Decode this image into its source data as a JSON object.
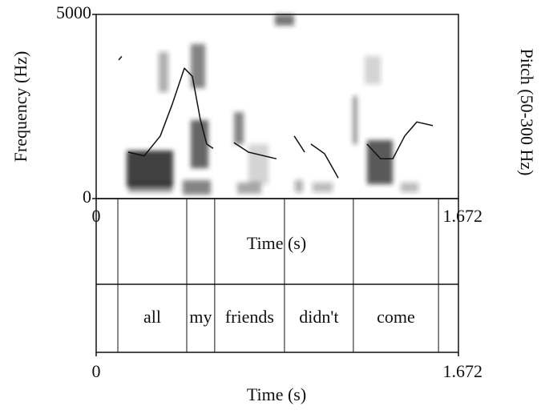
{
  "chart_data": {
    "type": "spectrogram",
    "ylabel": "Frequency (Hz)",
    "y2label": "Pitch (50-300 Hz)",
    "xlabel": "Time (s)",
    "xlim": [
      0,
      1.672
    ],
    "xticks": [
      0,
      1.672
    ],
    "ylim": [
      0,
      5000
    ],
    "yticks": [
      0,
      5000
    ],
    "y2lim": [
      50,
      300
    ],
    "series": [
      {
        "name": null,
        "axis": "y2",
        "color": "#111111",
        "x": [
          0.104,
          0.118,
          null,
          0.148,
          0.222,
          0.296,
          0.351,
          0.407,
          0.444,
          0.481,
          0.51,
          0.54,
          null,
          0.636,
          0.703,
          0.832,
          null,
          0.914,
          0.962,
          null,
          0.991,
          1.054,
          1.102,
          1.117,
          null,
          1.25,
          1.313,
          1.369,
          1.424,
          1.48,
          1.554
        ],
        "values": [
          238,
          243,
          null,
          113,
          108,
          135,
          178,
          227,
          216,
          157,
          124,
          118,
          null,
          126,
          113,
          104,
          null,
          135,
          113,
          null,
          124,
          111,
          86,
          78,
          null,
          124,
          104,
          104,
          135,
          154,
          149
        ]
      }
    ],
    "tier": {
      "boundaries": [
        0.1,
        0.418,
        0.547,
        0.869,
        1.187,
        1.58
      ],
      "labels": [
        null,
        "all",
        "my",
        "friends",
        "didn't",
        "come",
        null
      ]
    }
  }
}
